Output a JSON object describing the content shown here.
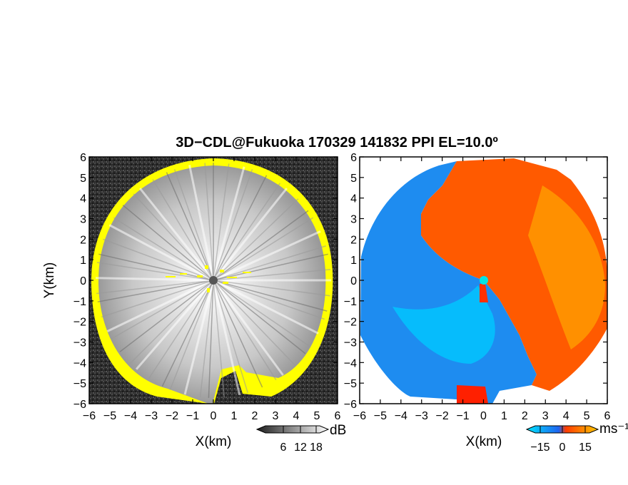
{
  "chart_data": [
    {
      "type": "heatmap",
      "title": "3D−CDL@Fukuoka 170329 141832 PPI EL=10.0º",
      "xlabel": "X(km)",
      "ylabel": "Y(km)",
      "xlim": [
        -6,
        6
      ],
      "ylim": [
        -6,
        6
      ],
      "x_ticks": [
        "−6",
        "−5",
        "−4",
        "−3",
        "−2",
        "−1",
        "0",
        "1",
        "2",
        "3",
        "4",
        "5",
        "6"
      ],
      "y_ticks": [
        "−6",
        "−5",
        "−4",
        "−3",
        "−2",
        "−1",
        "0",
        "1",
        "2",
        "3",
        "4",
        "5",
        "6"
      ],
      "colorbar": {
        "label": "dB",
        "ticks": [
          "6",
          "12",
          "18"
        ],
        "colors": [
          "#1e1e1e",
          "#ffffff"
        ]
      },
      "field": "signal intensity (grayscale)",
      "highlight_color": "#ffff00",
      "radar_site": [
        0,
        0
      ],
      "radar_site_color": "#555555"
    },
    {
      "type": "heatmap",
      "xlabel": "X(km)",
      "xlim": [
        -6,
        6
      ],
      "ylim": [
        -6,
        6
      ],
      "x_ticks": [
        "−6",
        "−5",
        "−4",
        "−3",
        "−2",
        "−1",
        "0",
        "1",
        "2",
        "3",
        "4",
        "5",
        "6"
      ],
      "y_ticks": [
        "−6",
        "−5",
        "−4",
        "−3",
        "−2",
        "−1",
        "0",
        "1",
        "2",
        "3",
        "4",
        "5",
        "6"
      ],
      "colorbar": {
        "label": "ms⁻¹",
        "ticks": [
          "−15",
          "0",
          "15"
        ],
        "colors": [
          "#00e6ff",
          "#1e64f0",
          "#ff3c00",
          "#ffc800"
        ]
      },
      "field": "doppler velocity",
      "negative_color": "#1e8cf0",
      "positive_color": "#ff5a00",
      "radar_site": [
        0,
        0
      ],
      "radar_site_color": "#00e5e5"
    }
  ]
}
